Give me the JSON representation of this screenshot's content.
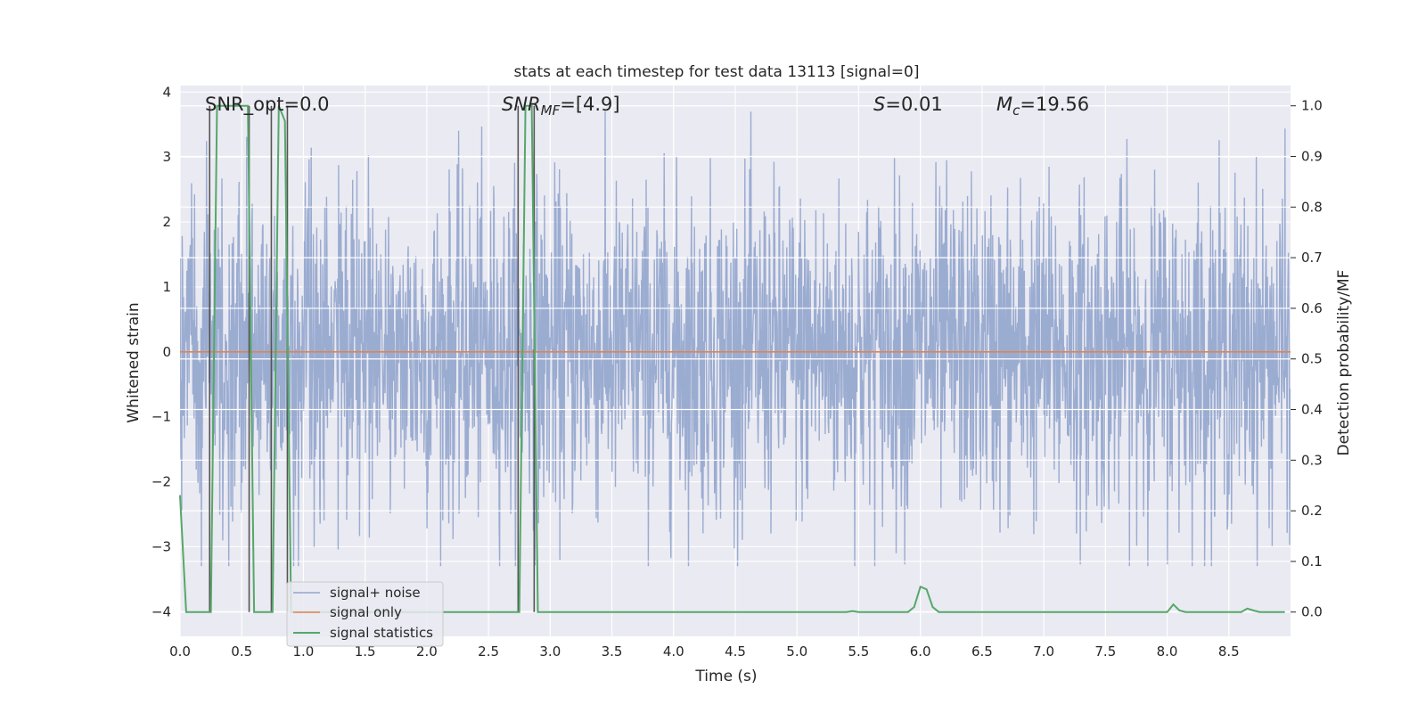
{
  "chart_data": {
    "type": "line",
    "title": "stats at each timestep for test data 13113 [signal=0]",
    "xlabel": "Time (s)",
    "ylabel_left": "Whitened strain",
    "ylabel_right": "Detection probability/MF",
    "xlim": [
      0.0,
      9.0
    ],
    "ylim_left": [
      -4.38,
      4.1
    ],
    "ylim_right": [
      -0.048,
      1.04
    ],
    "xticks": [
      "0.0",
      "0.5",
      "1.0",
      "1.5",
      "2.0",
      "2.5",
      "3.0",
      "3.5",
      "4.0",
      "4.5",
      "5.0",
      "5.5",
      "6.0",
      "6.5",
      "7.0",
      "7.5",
      "8.0",
      "8.5"
    ],
    "yticks_left": [
      "4",
      "3",
      "2",
      "1",
      "0",
      "−1",
      "−2",
      "−3",
      "−4"
    ],
    "yticks_right": [
      "1.0",
      "0.9",
      "0.8",
      "0.7",
      "0.6",
      "0.5",
      "0.4",
      "0.3",
      "0.2",
      "0.1",
      "0.0"
    ],
    "annotations": {
      "snr_opt": "SNR_opt=0.0",
      "snr_mf_main": "SNR",
      "snr_mf_sub": "MF",
      "snr_mf_value": "=[4.9]",
      "s_main": "S",
      "s_value": "=0.01",
      "mc_main": "M",
      "mc_sub": "c",
      "mc_value": "=19.56"
    },
    "legend": {
      "placement": "lower-left",
      "entries": [
        "signal+ noise",
        "signal only",
        "signal statistics"
      ]
    },
    "colors": {
      "noise": "#92a5cd",
      "signal_only": "#dd8452",
      "statistics": "#55a868",
      "vlines": "#555555",
      "background": "#eaeaf2",
      "grid": "#ffffff"
    },
    "series": [
      {
        "name": "signal+ noise",
        "description_of_values": "whitened strain noise samples, approx. Gaussian, sigma ~1.2",
        "x_range": [
          0.0,
          9.0
        ],
        "y_min": -3.3,
        "y_max": 3.7
      },
      {
        "name": "signal only",
        "x": [
          0.0,
          9.0
        ],
        "y": [
          0.0,
          0.0
        ]
      },
      {
        "name": "signal statistics",
        "x": [
          0.0,
          0.05,
          0.1,
          0.15,
          0.2,
          0.25,
          0.3,
          0.35,
          0.4,
          0.45,
          0.5,
          0.55,
          0.6,
          0.65,
          0.7,
          0.75,
          0.8,
          0.85,
          0.9,
          0.95,
          1.0,
          1.05,
          1.1,
          1.5,
          2.0,
          2.5,
          2.7,
          2.75,
          2.8,
          2.85,
          2.9,
          2.95,
          3.0,
          3.05,
          3.5,
          4.0,
          4.5,
          5.0,
          5.4,
          5.45,
          5.5,
          5.9,
          5.95,
          6.0,
          6.05,
          6.1,
          6.15,
          6.2,
          6.25,
          6.5,
          7.0,
          7.5,
          8.0,
          8.05,
          8.1,
          8.15,
          8.5,
          8.6,
          8.65,
          8.7,
          8.75,
          8.8,
          8.95
        ],
        "y": [
          0.23,
          0.0,
          0.0,
          0.0,
          0.0,
          0.0,
          1.0,
          1.0,
          1.0,
          1.0,
          1.0,
          1.0,
          0.0,
          0.0,
          0.0,
          0.0,
          1.0,
          0.97,
          0.0,
          0.0,
          0.0,
          0.0,
          0.0,
          0.0,
          0.0,
          0.0,
          0.0,
          0.0,
          1.0,
          1.0,
          0.0,
          0.0,
          0.0,
          0.0,
          0.0,
          0.0,
          0.0,
          0.0,
          0.0,
          0.002,
          0.0,
          0.0,
          0.01,
          0.05,
          0.045,
          0.01,
          0.0,
          0.0,
          0.0,
          0.0,
          0.0,
          0.0,
          0.0,
          0.015,
          0.003,
          0.0,
          0.0,
          0.0,
          0.007,
          0.003,
          0.0,
          0.0,
          0.0
        ]
      }
    ],
    "vlines_x": [
      0.24,
      0.56,
      0.74,
      0.87,
      2.74,
      2.87
    ]
  }
}
